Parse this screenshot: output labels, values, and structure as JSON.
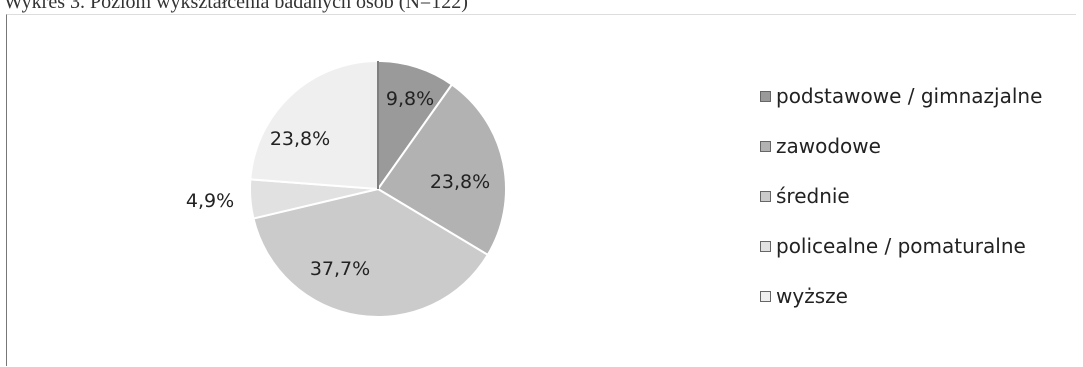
{
  "title": "Wykres 3. Poziom wykształcenia badanych osób (N=122)",
  "chart_data": {
    "type": "pie",
    "categories": [
      "podstawowe / gimnazjalne",
      "zawodowe",
      "średnie",
      "policealne / pomaturalne",
      "wyższe"
    ],
    "values": [
      9.8,
      23.8,
      37.7,
      4.9,
      23.8
    ],
    "data_labels": [
      "9,8%",
      "23,8%",
      "37,7%",
      "4,9%",
      "23,8%"
    ],
    "colors": [
      "#9a9a9a",
      "#b2b2b2",
      "#cbcbcb",
      "#e1e1e1",
      "#efefef"
    ],
    "legend_position": "right"
  }
}
